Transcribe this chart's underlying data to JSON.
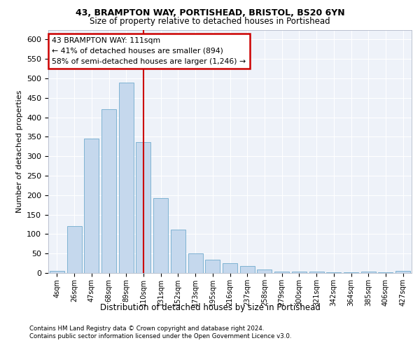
{
  "title_line1": "43, BRAMPTON WAY, PORTISHEAD, BRISTOL, BS20 6YN",
  "title_line2": "Size of property relative to detached houses in Portishead",
  "xlabel": "Distribution of detached houses by size in Portishead",
  "ylabel": "Number of detached properties",
  "categories": [
    "4sqm",
    "26sqm",
    "47sqm",
    "68sqm",
    "89sqm",
    "110sqm",
    "131sqm",
    "152sqm",
    "173sqm",
    "195sqm",
    "216sqm",
    "237sqm",
    "258sqm",
    "279sqm",
    "300sqm",
    "321sqm",
    "342sqm",
    "364sqm",
    "385sqm",
    "406sqm",
    "427sqm"
  ],
  "values": [
    5,
    120,
    345,
    420,
    490,
    337,
    193,
    112,
    50,
    35,
    25,
    18,
    9,
    4,
    3,
    3,
    2,
    1,
    3,
    1,
    5
  ],
  "bar_color": "#c5d8ed",
  "bar_edge_color": "#7fb3d3",
  "vline_x": 5,
  "vline_color": "#cc0000",
  "annotation_line1": "43 BRAMPTON WAY: 111sqm",
  "annotation_line2": "← 41% of detached houses are smaller (894)",
  "annotation_line3": "58% of semi-detached houses are larger (1,246) →",
  "annotation_box_color": "#cc0000",
  "ylim": [
    0,
    625
  ],
  "yticks": [
    0,
    50,
    100,
    150,
    200,
    250,
    300,
    350,
    400,
    450,
    500,
    550,
    600
  ],
  "footer_line1": "Contains HM Land Registry data © Crown copyright and database right 2024.",
  "footer_line2": "Contains public sector information licensed under the Open Government Licence v3.0.",
  "plot_bg_color": "#eef2f9",
  "grid_color": "#ffffff"
}
